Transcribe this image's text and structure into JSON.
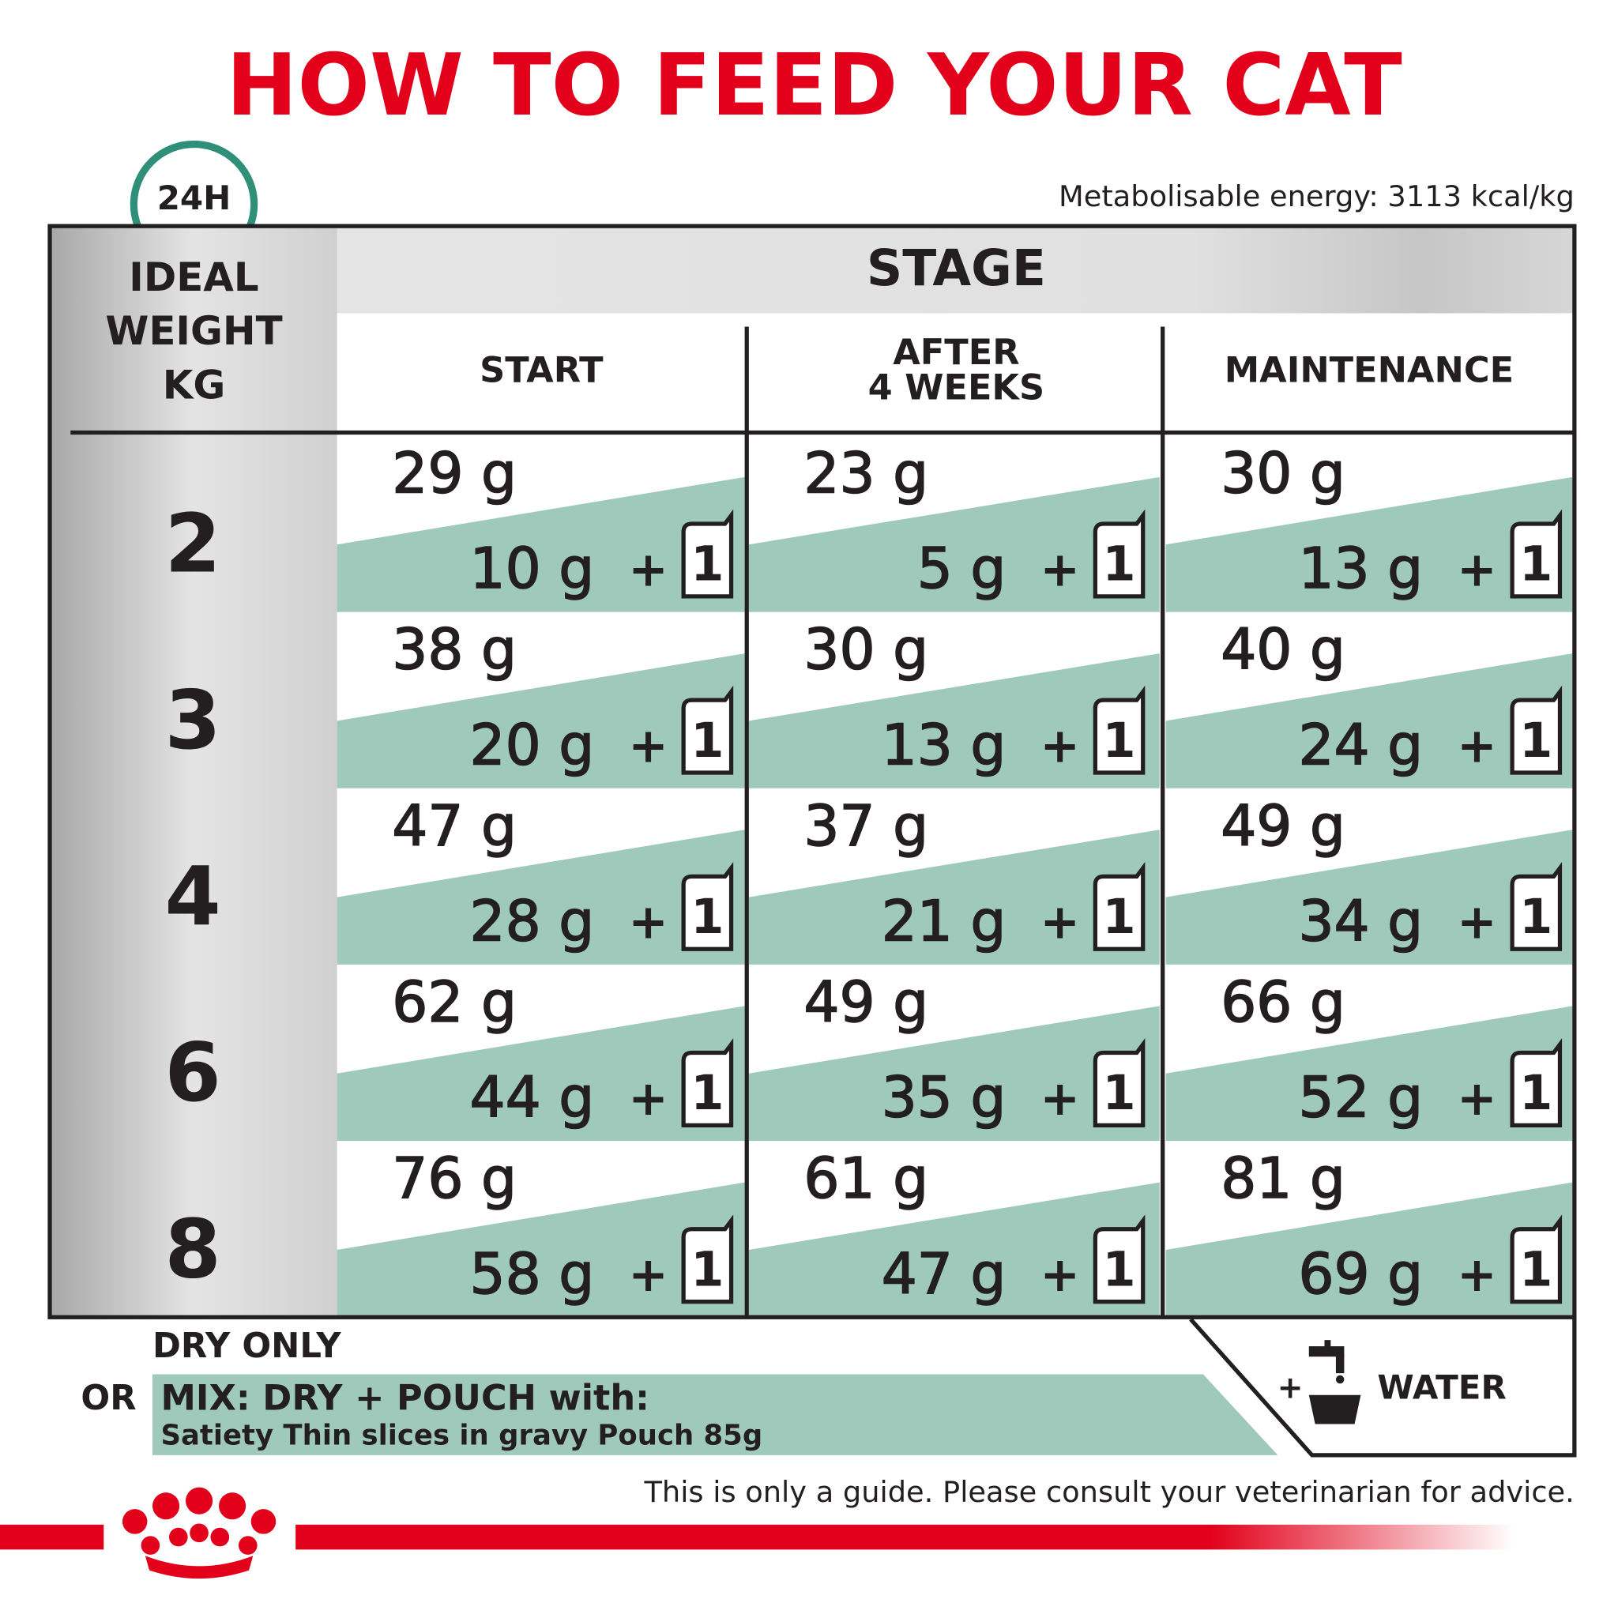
{
  "title": "HOW TO FEED YOUR CAT",
  "badge": "24H",
  "energy": "Metabolisable energy: 3113 kcal/kg",
  "table": {
    "weight_header": [
      "IDEAL",
      "WEIGHT",
      "KG"
    ],
    "stage_header": "STAGE",
    "columns": [
      [
        "START"
      ],
      [
        "AFTER",
        "4 WEEKS"
      ],
      [
        "MAINTENANCE"
      ]
    ],
    "plus": "+",
    "pouch_count": "1",
    "rows": [
      {
        "weight": "2",
        "cells": [
          {
            "dry": "29 g",
            "mix": "10 g"
          },
          {
            "dry": "23 g",
            "mix": "5 g"
          },
          {
            "dry": "30 g",
            "mix": "13 g"
          }
        ]
      },
      {
        "weight": "3",
        "cells": [
          {
            "dry": "38 g",
            "mix": "20 g"
          },
          {
            "dry": "30 g",
            "mix": "13 g"
          },
          {
            "dry": "40 g",
            "mix": "24 g"
          }
        ]
      },
      {
        "weight": "4",
        "cells": [
          {
            "dry": "47 g",
            "mix": "28 g"
          },
          {
            "dry": "37 g",
            "mix": "21 g"
          },
          {
            "dry": "49 g",
            "mix": "34 g"
          }
        ]
      },
      {
        "weight": "6",
        "cells": [
          {
            "dry": "62 g",
            "mix": "44 g"
          },
          {
            "dry": "49 g",
            "mix": "35 g"
          },
          {
            "dry": "66 g",
            "mix": "52 g"
          }
        ]
      },
      {
        "weight": "8",
        "cells": [
          {
            "dry": "76 g",
            "mix": "58 g"
          },
          {
            "dry": "61 g",
            "mix": "47 g"
          },
          {
            "dry": "81 g",
            "mix": "69 g"
          }
        ]
      }
    ]
  },
  "footer": {
    "dry_only": "DRY ONLY",
    "or": "OR",
    "mix": "MIX: DRY + POUCH with:",
    "pouch": "Satiety Thin slices in gravy Pouch 85g",
    "water_plus": "+",
    "water": "WATER",
    "disclaimer": "This is only a guide. Please consult your veterinarian for advice."
  }
}
